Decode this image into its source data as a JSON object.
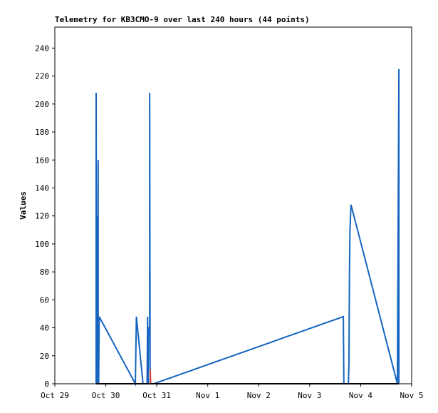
{
  "chart_data": {
    "type": "line",
    "title": "Telemetry for KB3CMO-9 over last 240 hours (44 points)",
    "y_label": "Values",
    "xlim": [
      0,
      7
    ],
    "xticks": [
      {
        "value": 0,
        "label": "Oct 29"
      },
      {
        "value": 1,
        "label": "Oct 30"
      },
      {
        "value": 2,
        "label": "Oct 31"
      },
      {
        "value": 3,
        "label": "Nov 1"
      },
      {
        "value": 4,
        "label": "Nov 2"
      },
      {
        "value": 5,
        "label": "Nov 3"
      },
      {
        "value": 6,
        "label": "Nov 4"
      },
      {
        "value": 7,
        "label": "Nov 5"
      }
    ],
    "ylim": [
      0,
      255
    ],
    "yticks": [
      0,
      20,
      40,
      60,
      80,
      100,
      120,
      140,
      160,
      180,
      200,
      220,
      240
    ],
    "series": [
      {
        "color": "#1565c0",
        "x": [
          0.81,
          0.81,
          0.82,
          0.83,
          0.84,
          0.85,
          0.85,
          0.86,
          0.87,
          1.58,
          1.59,
          1.6,
          1.73,
          1.81,
          1.82,
          1.83,
          1.84,
          1.86,
          1.86,
          1.87,
          1.94,
          5.66,
          5.67,
          5.76,
          5.77,
          5.78,
          5.79,
          5.81,
          6.72,
          6.75,
          6.75
        ],
        "values": [
          0,
          208,
          0,
          120,
          0,
          160,
          0,
          0,
          48,
          0,
          25,
          48,
          0,
          0,
          48,
          0,
          40,
          40,
          208,
          0,
          0,
          48,
          0,
          0,
          15,
          80,
          110,
          128,
          0,
          225,
          0
        ]
      },
      {
        "color": "#e53935",
        "x": [
          1.87,
          1.88
        ],
        "values": [
          10,
          0
        ]
      },
      {
        "color": "#000000",
        "x": [
          0.81,
          6.75
        ],
        "values": [
          0,
          0
        ]
      }
    ]
  }
}
